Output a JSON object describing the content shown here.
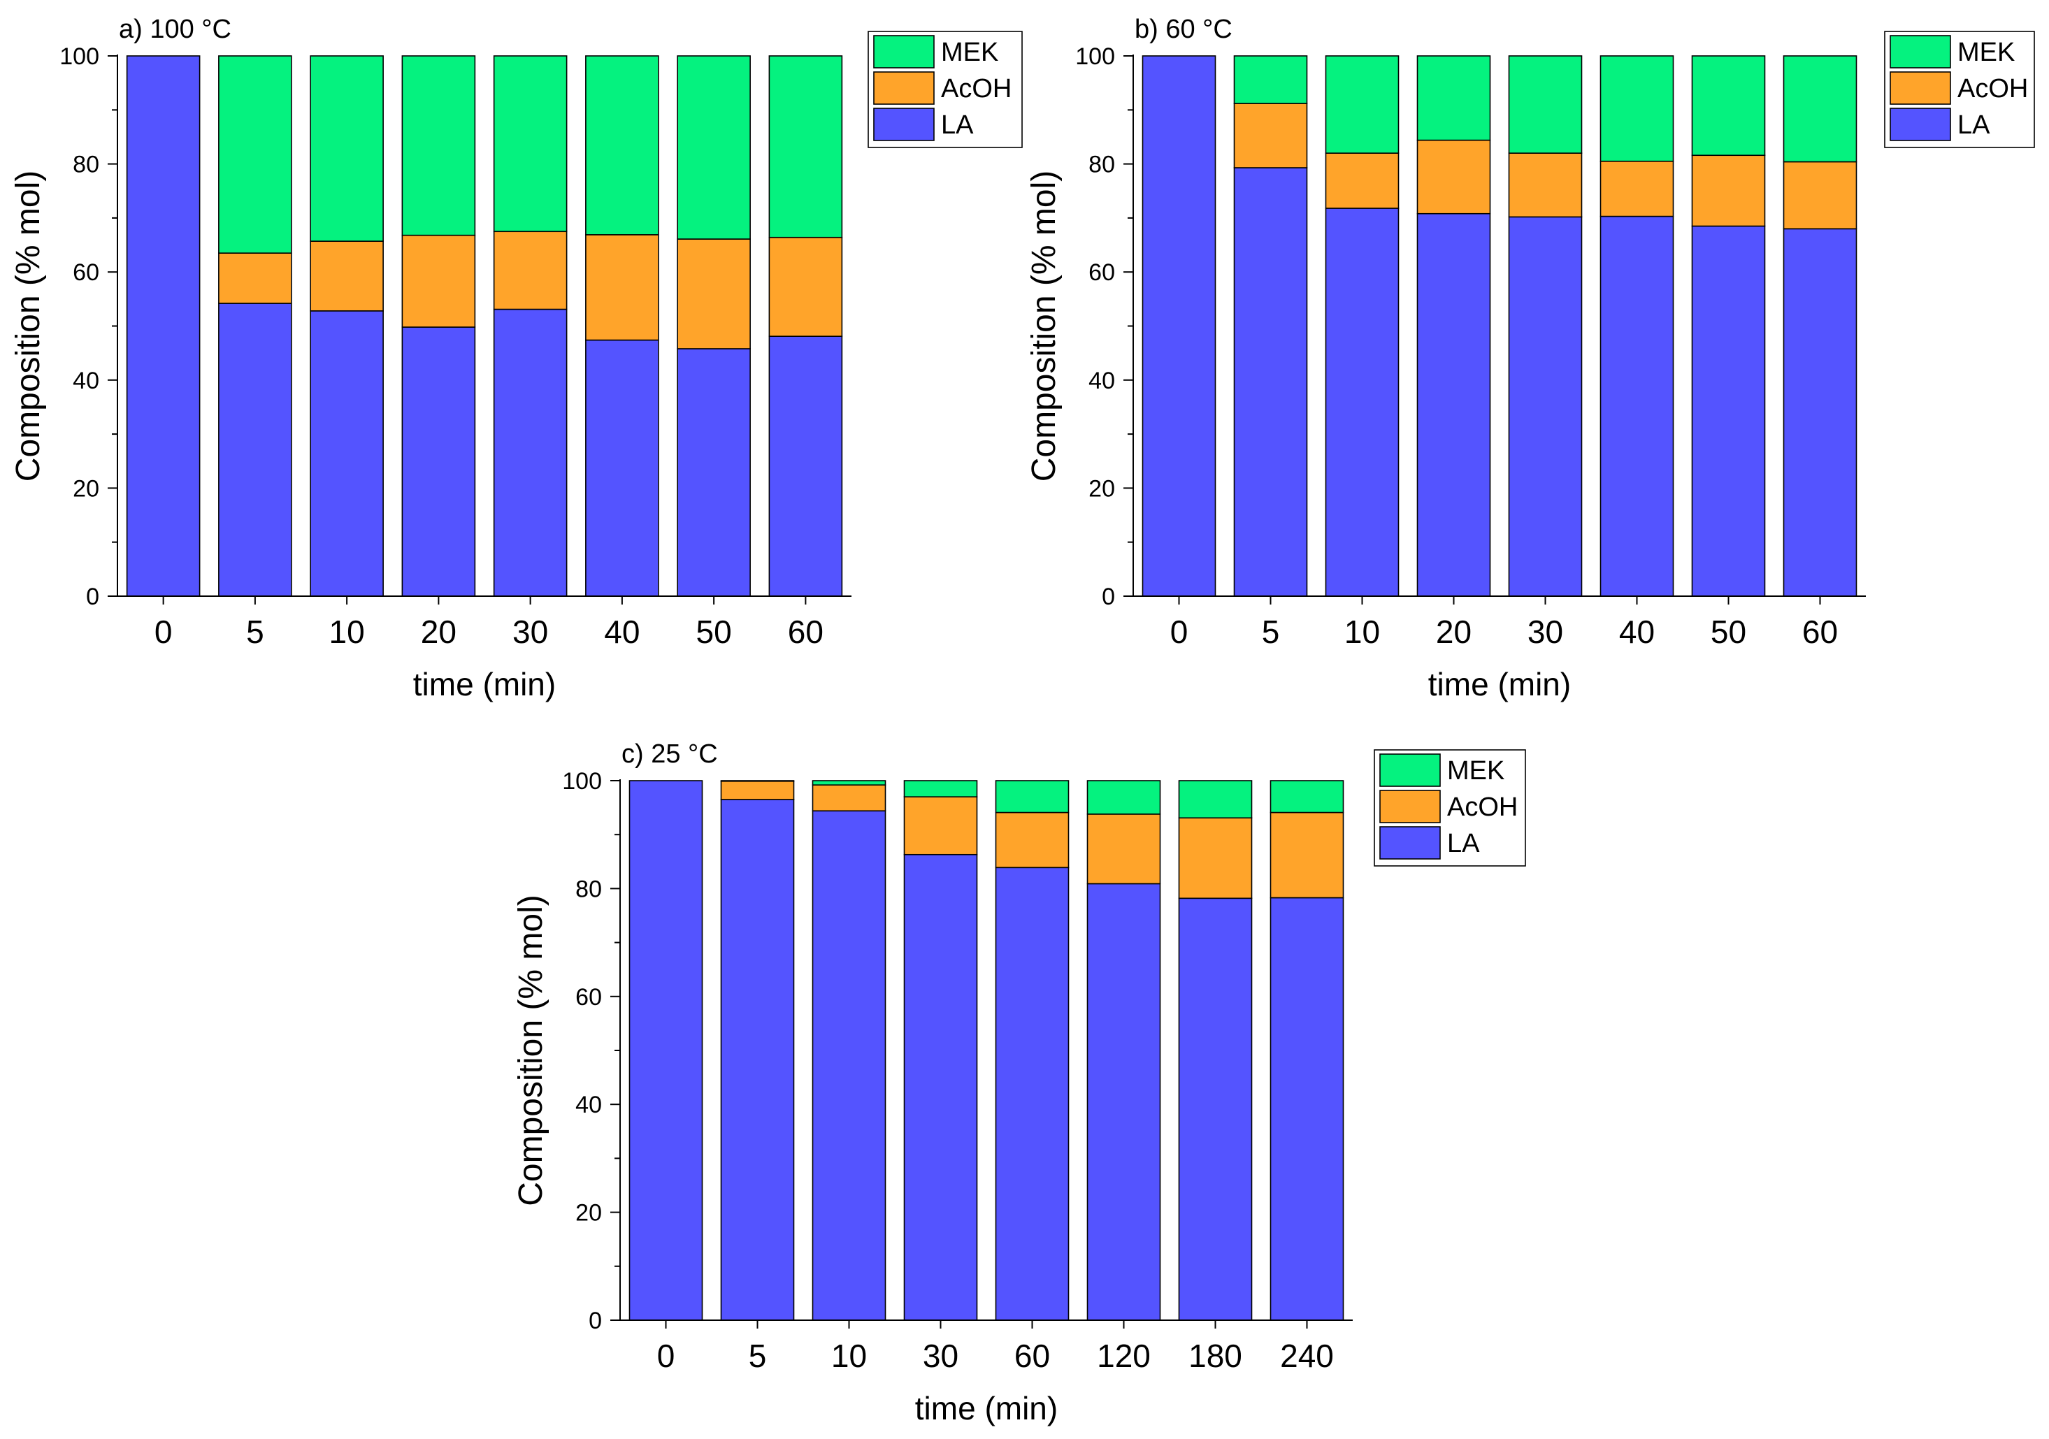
{
  "colors": {
    "MEK": "#05f27f",
    "AcOH": "#ffa42a",
    "LA": "#5454ff"
  },
  "chart_data": [
    {
      "type": "bar",
      "stacked": true,
      "title": "a) 100 °C",
      "xlabel": "time (min)",
      "ylabel": "Composition (% mol)",
      "ylim": [
        0,
        100
      ],
      "yticks": [
        "0",
        "20",
        "40",
        "60",
        "80",
        "100"
      ],
      "categories": [
        "0",
        "5",
        "10",
        "20",
        "30",
        "40",
        "50",
        "60"
      ],
      "legend_position": "top-right",
      "legend": [
        "MEK",
        "AcOH",
        "LA"
      ],
      "series": [
        {
          "name": "LA",
          "values": [
            100,
            54.2,
            52.8,
            49.8,
            53.1,
            47.4,
            45.8,
            48.1
          ]
        },
        {
          "name": "AcOH",
          "values": [
            0,
            9.3,
            12.9,
            17.0,
            14.4,
            19.5,
            20.3,
            18.3
          ]
        },
        {
          "name": "MEK",
          "values": [
            0,
            36.5,
            34.3,
            33.2,
            32.5,
            33.1,
            33.9,
            33.6
          ]
        }
      ]
    },
    {
      "type": "bar",
      "stacked": true,
      "title": "b) 60 °C",
      "xlabel": "time (min)",
      "ylabel": "Composition (% mol)",
      "ylim": [
        0,
        100
      ],
      "yticks": [
        "0",
        "20",
        "40",
        "60",
        "80",
        "100"
      ],
      "categories": [
        "0",
        "5",
        "10",
        "20",
        "30",
        "40",
        "50",
        "60"
      ],
      "legend_position": "top-right",
      "legend": [
        "MEK",
        "AcOH",
        "LA"
      ],
      "series": [
        {
          "name": "LA",
          "values": [
            100,
            79.3,
            71.8,
            70.8,
            70.2,
            70.3,
            68.5,
            68.0
          ]
        },
        {
          "name": "AcOH",
          "values": [
            0,
            11.9,
            10.2,
            13.6,
            11.8,
            10.2,
            13.1,
            12.4
          ]
        },
        {
          "name": "MEK",
          "values": [
            0,
            8.8,
            18.0,
            15.6,
            18.0,
            19.5,
            18.4,
            19.6
          ]
        }
      ]
    },
    {
      "type": "bar",
      "stacked": true,
      "title": "c) 25 °C",
      "xlabel": "time (min)",
      "ylabel": "Composition (% mol)",
      "ylim": [
        0,
        100
      ],
      "yticks": [
        "0",
        "20",
        "40",
        "60",
        "80",
        "100"
      ],
      "categories": [
        "0",
        "5",
        "10",
        "30",
        "60",
        "120",
        "180",
        "240"
      ],
      "legend_position": "top-right",
      "legend": [
        "MEK",
        "AcOH",
        "LA"
      ],
      "series": [
        {
          "name": "LA",
          "values": [
            100,
            96.5,
            94.4,
            86.3,
            83.9,
            80.9,
            78.2,
            78.3
          ]
        },
        {
          "name": "AcOH",
          "values": [
            0,
            3.4,
            4.8,
            10.7,
            10.2,
            12.9,
            14.9,
            15.8
          ]
        },
        {
          "name": "MEK",
          "values": [
            0,
            0.1,
            0.8,
            3.0,
            5.9,
            6.2,
            6.9,
            5.9
          ]
        }
      ]
    }
  ]
}
